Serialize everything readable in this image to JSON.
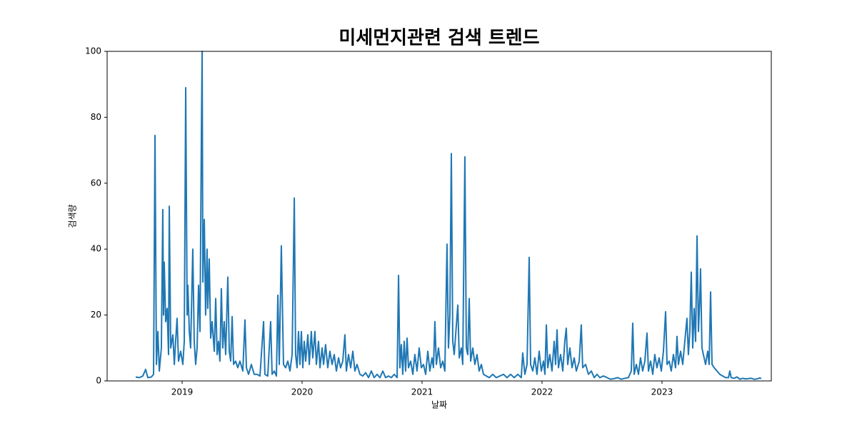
{
  "chart_data": {
    "type": "line",
    "title": "미세먼지관련 검색 트렌드",
    "x_label": "날짜",
    "y_label": "검색량",
    "color": "#1f77b4",
    "x": [
      2018.613,
      2018.643,
      2018.673,
      2018.696,
      2018.714,
      2018.744,
      2018.762,
      2018.774,
      2018.786,
      2018.798,
      2018.81,
      2018.827,
      2018.839,
      2018.845,
      2018.851,
      2018.863,
      2018.875,
      2018.887,
      2018.893,
      2018.905,
      2018.923,
      2018.935,
      2018.946,
      2018.958,
      2018.97,
      2018.988,
      2019.006,
      2019.018,
      2019.03,
      2019.042,
      2019.048,
      2019.06,
      2019.071,
      2019.089,
      2019.101,
      2019.113,
      2019.125,
      2019.137,
      2019.149,
      2019.161,
      2019.167,
      2019.173,
      2019.185,
      2019.196,
      2019.208,
      2019.214,
      2019.226,
      2019.238,
      2019.25,
      2019.268,
      2019.28,
      2019.292,
      2019.304,
      2019.315,
      2019.327,
      2019.339,
      2019.351,
      2019.363,
      2019.381,
      2019.393,
      2019.405,
      2019.417,
      2019.429,
      2019.446,
      2019.464,
      2019.482,
      2019.506,
      2019.524,
      2019.536,
      2019.554,
      2019.577,
      2019.601,
      2019.625,
      2019.649,
      2019.679,
      2019.69,
      2019.714,
      2019.738,
      2019.75,
      2019.768,
      2019.786,
      2019.798,
      2019.81,
      2019.827,
      2019.833,
      2019.845,
      2019.863,
      2019.881,
      2019.899,
      2019.917,
      2019.935,
      2019.946,
      2019.958,
      2019.97,
      2019.982,
      2019.994,
      2020.006,
      2020.018,
      2020.03,
      2020.048,
      2020.06,
      2020.077,
      2020.089,
      2020.107,
      2020.119,
      2020.137,
      2020.149,
      2020.167,
      2020.179,
      2020.196,
      2020.214,
      2020.232,
      2020.25,
      2020.268,
      2020.286,
      2020.304,
      2020.321,
      2020.339,
      2020.357,
      2020.369,
      2020.387,
      2020.405,
      2020.423,
      2020.44,
      2020.458,
      2020.482,
      2020.506,
      2020.53,
      2020.554,
      2020.577,
      2020.601,
      2020.625,
      2020.649,
      2020.673,
      2020.696,
      2020.72,
      2020.744,
      2020.768,
      2020.792,
      2020.804,
      2020.815,
      2020.827,
      2020.839,
      2020.851,
      2020.863,
      2020.875,
      2020.887,
      2020.905,
      2020.923,
      2020.94,
      2020.958,
      2020.976,
      2020.994,
      2021.012,
      2021.03,
      2021.048,
      2021.065,
      2021.083,
      2021.095,
      2021.107,
      2021.119,
      2021.137,
      2021.155,
      2021.173,
      2021.19,
      2021.208,
      2021.22,
      2021.232,
      2021.244,
      2021.256,
      2021.268,
      2021.28,
      2021.298,
      2021.31,
      2021.327,
      2021.339,
      2021.357,
      2021.369,
      2021.381,
      2021.393,
      2021.405,
      2021.423,
      2021.44,
      2021.458,
      2021.476,
      2021.494,
      2021.512,
      2021.536,
      2021.56,
      2021.589,
      2021.619,
      2021.649,
      2021.679,
      2021.708,
      2021.738,
      2021.768,
      2021.798,
      2021.827,
      2021.839,
      2021.857,
      2021.875,
      2021.893,
      2021.905,
      2021.923,
      2021.94,
      2021.958,
      2021.976,
      2021.994,
      2022.012,
      2022.024,
      2022.036,
      2022.048,
      2022.065,
      2022.083,
      2022.101,
      2022.113,
      2022.125,
      2022.137,
      2022.155,
      2022.173,
      2022.19,
      2022.202,
      2022.214,
      2022.232,
      2022.25,
      2022.268,
      2022.286,
      2022.31,
      2022.327,
      2022.339,
      2022.363,
      2022.387,
      2022.411,
      2022.435,
      2022.458,
      2022.482,
      2022.512,
      2022.542,
      2022.571,
      2022.601,
      2022.631,
      2022.661,
      2022.69,
      2022.72,
      2022.744,
      2022.756,
      2022.768,
      2022.786,
      2022.804,
      2022.821,
      2022.839,
      2022.857,
      2022.875,
      2022.887,
      2022.905,
      2022.923,
      2022.94,
      2022.958,
      2022.976,
      2022.994,
      2023.012,
      2023.03,
      2023.042,
      2023.06,
      2023.077,
      2023.095,
      2023.113,
      2023.125,
      2023.137,
      2023.155,
      2023.173,
      2023.19,
      2023.208,
      2023.22,
      2023.232,
      2023.244,
      2023.256,
      2023.268,
      2023.28,
      2023.292,
      2023.304,
      2023.315,
      2023.321,
      2023.333,
      2023.345,
      2023.363,
      2023.381,
      2023.393,
      2023.405,
      2023.417,
      2023.435,
      2023.458,
      2023.482,
      2023.506,
      2023.53,
      2023.554,
      2023.565,
      2023.577,
      2023.601,
      2023.625,
      2023.649,
      2023.673,
      2023.696,
      2023.72,
      2023.744,
      2023.768,
      2023.792,
      2023.815,
      2023.827
    ],
    "values": [
      1.2,
      1,
      1.5,
      3.5,
      1,
      1.2,
      2,
      74.5,
      5,
      15,
      3,
      10,
      52,
      20,
      36,
      18,
      22,
      8,
      53,
      10,
      14,
      5,
      12,
      19,
      6,
      9,
      5,
      12,
      89,
      20,
      29,
      15,
      10,
      40,
      12,
      5,
      10,
      29,
      15,
      76,
      100,
      30,
      49,
      20,
      40,
      22,
      37,
      13,
      18,
      9,
      25,
      8,
      12,
      6,
      28,
      10,
      18,
      8,
      31.5,
      9,
      6,
      19.5,
      5,
      6,
      4,
      6,
      3,
      18.5,
      4,
      2,
      5,
      2,
      2,
      1.5,
      18,
      2,
      1.5,
      18,
      2,
      3,
      1.5,
      26,
      5,
      41,
      29,
      5,
      4,
      6,
      3,
      8,
      55.5,
      8,
      4,
      15,
      5,
      15,
      4,
      12,
      6,
      14,
      5,
      15,
      7,
      15,
      5,
      12,
      4,
      10,
      5,
      11,
      4,
      9,
      5,
      8,
      3,
      7,
      4,
      6,
      14,
      3,
      8,
      4,
      9,
      3,
      5,
      2,
      1.5,
      2.5,
      1,
      3,
      1,
      2,
      1,
      3,
      1,
      1.5,
      1,
      2,
      1,
      32,
      4,
      11,
      2,
      12,
      3,
      13,
      4,
      6,
      2,
      8,
      3,
      10,
      4,
      5,
      2,
      9,
      3,
      7,
      4,
      18,
      5,
      10,
      4,
      6,
      3,
      41.5,
      10,
      20,
      69,
      12,
      8,
      14,
      23,
      7,
      10,
      5,
      68,
      10,
      8,
      25,
      6,
      10,
      5,
      8,
      3,
      5,
      2,
      1.5,
      1,
      2,
      1,
      1.5,
      2,
      1,
      2,
      1,
      2,
      1,
      8.5,
      2,
      5,
      37.5,
      5,
      3,
      7,
      2,
      9,
      3,
      6,
      2,
      17,
      4,
      8,
      3,
      12,
      5,
      15.5,
      4,
      8,
      3,
      12,
      16,
      5,
      10,
      4,
      7,
      3,
      6,
      17,
      4,
      5,
      2,
      3,
      1,
      2,
      1,
      1.5,
      1,
      0.5,
      0.7,
      1,
      0.5,
      0.8,
      1,
      3,
      17.5,
      2,
      5,
      2,
      7,
      3,
      6,
      14.5,
      3,
      6,
      2,
      8,
      4,
      7,
      3,
      9,
      21,
      5,
      6,
      3,
      8,
      4,
      13.5,
      5,
      9,
      5,
      12,
      19,
      8,
      15,
      33,
      10,
      22,
      12,
      44,
      15,
      25,
      34,
      10,
      8,
      5,
      9,
      5,
      27,
      5,
      4,
      3,
      2,
      1.5,
      1,
      1,
      3,
      1,
      0.8,
      1.2,
      0.5,
      0.8,
      0.6,
      0.7,
      0.8,
      0.5,
      0.6,
      0.9,
      0.7
    ],
    "xlim": [
      2018.375,
      2023.911
    ],
    "xticks": [
      2019,
      2020,
      2021,
      2022,
      2023
    ],
    "ylim": [
      0,
      100
    ],
    "yticks": [
      0,
      20,
      40,
      60,
      80,
      100
    ]
  }
}
